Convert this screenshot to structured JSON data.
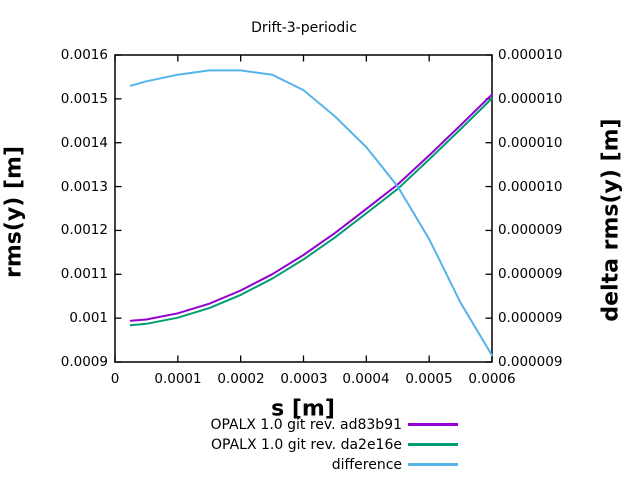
{
  "title": "Drift-3-periodic",
  "axes": {
    "x": {
      "label": "s [m]",
      "tick_labels": [
        "0",
        "0.0001",
        "0.0002",
        "0.0003",
        "0.0004",
        "0.0005",
        "0.0006"
      ]
    },
    "y_left": {
      "label": "rms(y) [m]",
      "tick_labels": [
        "0.0009",
        "0.001",
        "0.0011",
        "0.0012",
        "0.0013",
        "0.0014",
        "0.0015",
        "0.0016"
      ]
    },
    "y_right": {
      "label": "delta rms(y) [m]",
      "tick_labels": [
        "0.000009",
        "0.000009",
        "0.000009",
        "0.000009",
        "0.000010",
        "0.000010",
        "0.000010",
        "0.000010"
      ]
    }
  },
  "chart_data": {
    "type": "line",
    "title": "Drift-3-periodic",
    "xlabel": "s [m]",
    "ylabel_left": "rms(y) [m]",
    "ylabel_right": "delta rms(y) [m]",
    "xlim": [
      0,
      0.0006
    ],
    "ylim_left": [
      0.0009,
      0.0016
    ],
    "ylim_right": [
      8.8e-06,
      1.02e-05
    ],
    "grid": false,
    "legend_position": "bottom-center",
    "x": [
      2.5e-05,
      5e-05,
      0.0001,
      0.00015,
      0.0002,
      0.00025,
      0.0003,
      0.00035,
      0.0004,
      0.00045,
      0.0005,
      0.00055,
      0.0006
    ],
    "series": [
      {
        "name": "OPALX 1.0 git rev. ad83b91",
        "axis": "left",
        "color": "#9400d3",
        "values": [
          0.000994,
          0.000997,
          0.001011,
          0.001033,
          0.001063,
          0.0011,
          0.001144,
          0.001194,
          0.001249,
          0.001305,
          0.001371,
          0.00144,
          0.00151
        ]
      },
      {
        "name": "OPALX 1.0 git rev. da2e16e",
        "axis": "left",
        "color": "#009e73",
        "values": [
          0.000984,
          0.000987,
          0.001001,
          0.001023,
          0.001053,
          0.00109,
          0.001134,
          0.001184,
          0.001239,
          0.001295,
          0.001362,
          0.001431,
          0.001501
        ]
      },
      {
        "name": "difference",
        "axis": "right",
        "color": "#56b4e9",
        "values": [
          1.006e-05,
          1.008e-05,
          1.011e-05,
          1.013e-05,
          1.013e-05,
          1.011e-05,
          1.004e-05,
          9.92e-06,
          9.78e-06,
          9.6e-06,
          9.36e-06,
          9.07e-06,
          8.83e-06
        ]
      }
    ]
  }
}
